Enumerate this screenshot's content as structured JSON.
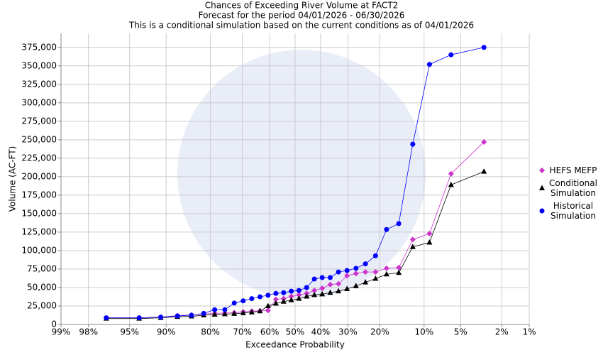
{
  "chart_data": {
    "type": "line",
    "title": "Chances of Exceeding River Volume at FACT2",
    "subtitle": "Forecast for the period 04/01/2026 - 06/30/2026",
    "note": "This is a conditional simulation based on the current conditions as of 04/01/2026",
    "x_label": "Exceedance Probability",
    "y_label": "Volume (AC-FT)",
    "xscale": "probability",
    "xlim": [
      99,
      1
    ],
    "xticks": [
      {
        "value": 99,
        "label": "99%"
      },
      {
        "value": 98,
        "label": "98%"
      },
      {
        "value": 95,
        "label": "95%"
      },
      {
        "value": 90,
        "label": "90%"
      },
      {
        "value": 80,
        "label": "80%"
      },
      {
        "value": 70,
        "label": "70%"
      },
      {
        "value": 60,
        "label": "60%"
      },
      {
        "value": 50,
        "label": "50%"
      },
      {
        "value": 40,
        "label": "40%"
      },
      {
        "value": 30,
        "label": "30%"
      },
      {
        "value": 20,
        "label": "20%"
      },
      {
        "value": 10,
        "label": "10%"
      },
      {
        "value": 5,
        "label": "5%"
      },
      {
        "value": 2,
        "label": "2%"
      },
      {
        "value": 1,
        "label": "1%"
      }
    ],
    "ylim": [
      0,
      394000
    ],
    "yticks": [
      0,
      {
        "value": 25000,
        "label": "25,000"
      },
      {
        "value": 50000,
        "label": "50,000"
      },
      {
        "value": 75000,
        "label": "75,000"
      },
      {
        "value": 100000,
        "label": "100,000"
      },
      {
        "value": 125000,
        "label": "125,000"
      },
      {
        "value": 150000,
        "label": "150,000"
      },
      {
        "value": 175000,
        "label": "175,000"
      },
      {
        "value": 200000,
        "label": "200,000"
      },
      {
        "value": 225000,
        "label": "225,000"
      },
      {
        "value": 250000,
        "label": "250,000"
      },
      {
        "value": 275000,
        "label": "275,000"
      },
      {
        "value": 300000,
        "label": "300,000"
      },
      {
        "value": 325000,
        "label": "325,000"
      },
      {
        "value": 350000,
        "label": "350,000"
      },
      {
        "value": 375000,
        "label": "375,000"
      }
    ],
    "grid": true,
    "legend": "right",
    "x": [
      96.97,
      93.94,
      90.91,
      87.88,
      84.85,
      81.82,
      78.79,
      75.76,
      72.73,
      69.7,
      66.67,
      63.64,
      60.61,
      57.58,
      54.55,
      51.52,
      48.48,
      45.45,
      42.42,
      39.39,
      36.36,
      33.33,
      30.3,
      27.27,
      24.24,
      21.21,
      18.18,
      15.15,
      12.12,
      9.09,
      6.06,
      3.03
    ],
    "series": [
      {
        "name": "HEFS MEFP",
        "color": "#cc33cc",
        "marker": "diamond",
        "values": [
          9000,
          9000,
          10000,
          12000,
          13000,
          14000,
          15000,
          15500,
          16000,
          17000,
          18000,
          18500,
          19000,
          34000,
          35000,
          38000,
          40000,
          42000,
          46000,
          49000,
          54000,
          55000,
          66000,
          69000,
          71000,
          71000,
          76000,
          77000,
          115000,
          123000,
          204000,
          247000
        ]
      },
      {
        "name": "Conditional Simulation",
        "color": "#000000",
        "marker": "triangle",
        "values": [
          8000,
          8000,
          9000,
          10500,
          11000,
          12500,
          13500,
          14000,
          14500,
          15500,
          16500,
          18000,
          25000,
          28500,
          31000,
          33000,
          35000,
          38000,
          40000,
          41000,
          43000,
          45000,
          48000,
          52000,
          57000,
          62000,
          68000,
          70000,
          105000,
          111000,
          189000,
          207000
        ]
      },
      {
        "name": "Historical Simulation",
        "color": "#0000ff",
        "marker": "circle",
        "values": [
          9000,
          9000,
          10000,
          11500,
          12500,
          15000,
          20000,
          20000,
          29000,
          32000,
          35000,
          37500,
          39500,
          42000,
          43000,
          45000,
          46000,
          50000,
          61500,
          63500,
          63500,
          71000,
          73000,
          76000,
          82000,
          93000,
          128500,
          136500,
          244000,
          352000,
          365000,
          375000
        ]
      }
    ]
  }
}
